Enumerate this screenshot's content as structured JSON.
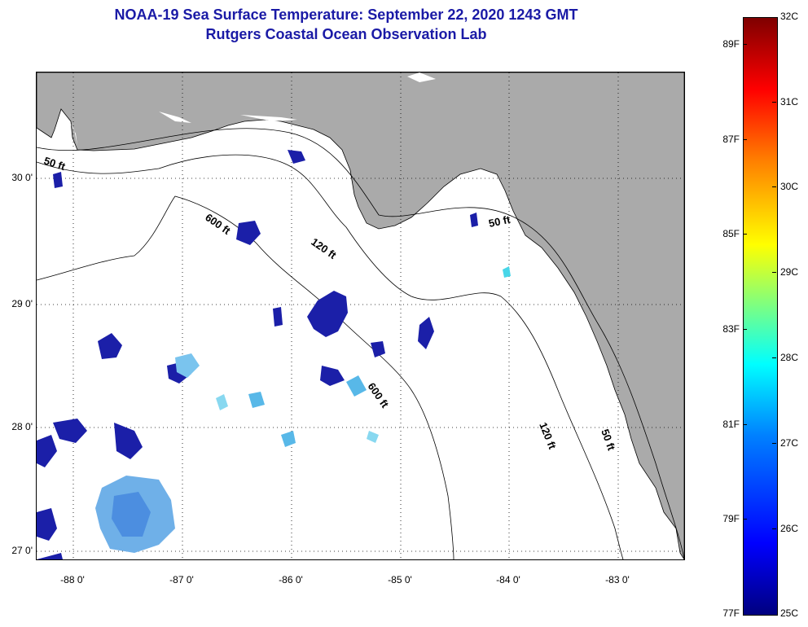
{
  "title_line1": "NOAA-19 Sea Surface Temperature:  September 22, 2020 1243 GMT",
  "title_line2": "Rutgers Coastal Ocean Observation Lab",
  "latitude_labels": [
    "30 0'",
    "29 0'",
    "28 0'",
    "27 0'"
  ],
  "longitude_labels": [
    "-88 0'",
    "-87 0'",
    "-86 0'",
    "-85 0'",
    "-84 0'",
    "-83 0'"
  ],
  "contour_labels": {
    "ft50_west": "50 ft",
    "ft50_east": "50 ft",
    "ft50_south": "50 ft",
    "ft120_north": "120 ft",
    "ft120_south": "120 ft",
    "ft600_north": "600 ft",
    "ft600_south": "600 ft"
  },
  "colorbar": {
    "fahrenheit_labels": [
      "89F",
      "87F",
      "85F",
      "83F",
      "81F",
      "79F",
      "77F"
    ],
    "celsius_labels": [
      "32C",
      "31C",
      "30C",
      "29C",
      "28C",
      "27C",
      "26C",
      "25C"
    ],
    "range_celsius": [
      25,
      32
    ],
    "range_fahrenheit": [
      77,
      89.6
    ]
  },
  "colors": {
    "land": "#aaaaaa",
    "title": "#1a1aa6",
    "cold_sst": "#00007f",
    "warm_sst": "#7f0000"
  }
}
